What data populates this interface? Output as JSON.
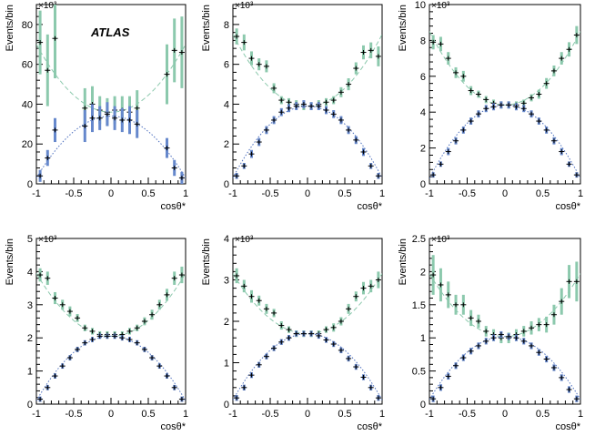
{
  "figure": {
    "atlas_label": "ATLAS"
  },
  "colors": {
    "green_series": "#8cc9ad",
    "blue_series": "#6688cc",
    "green_curve": "#8cc9ad",
    "blue_curve": "#4d6fbf",
    "marker": "#000000",
    "frame": "#000000"
  },
  "chart_data": [
    {
      "type": "scatter",
      "panel": "top-left",
      "xlabel": "cosθ*",
      "ylabel": "Events/bin",
      "exponent_label": "×10³",
      "xlim": [
        -1,
        1
      ],
      "ylim": [
        0,
        90
      ],
      "xticks": [
        -1,
        -0.5,
        0,
        0.5,
        1
      ],
      "xtick_labels": [
        "-1",
        "-0.5",
        "0",
        "0.5",
        "1"
      ],
      "yticks": [
        0,
        20,
        40,
        60,
        80
      ],
      "ytick_labels": [
        "0",
        "20",
        "40",
        "60",
        "80"
      ],
      "show_atlas": true,
      "x": [
        -0.95,
        -0.85,
        -0.75,
        -0.65,
        -0.55,
        -0.45,
        -0.35,
        -0.25,
        -0.15,
        -0.05,
        0.05,
        0.15,
        0.25,
        0.35,
        0.45,
        0.55,
        0.65,
        0.75,
        0.85,
        0.95
      ],
      "series": [
        {
          "name": "green",
          "style": "dashed",
          "curve": [
            36,
            0,
            34
          ],
          "values": [
            71,
            57,
            73,
            null,
            null,
            null,
            38,
            40,
            37,
            36,
            37,
            37,
            36,
            38,
            null,
            null,
            null,
            55,
            67,
            66
          ],
          "errors": [
            16,
            18,
            20,
            0,
            0,
            0,
            10,
            9,
            7,
            7,
            7,
            7,
            8,
            9,
            0,
            0,
            0,
            15,
            16,
            18
          ]
        },
        {
          "name": "blue",
          "style": "dotted",
          "curve": [
            34,
            0,
            -31
          ],
          "values": [
            4,
            13,
            27,
            null,
            null,
            null,
            29,
            33,
            33,
            35,
            33,
            32,
            32,
            30,
            null,
            null,
            null,
            18,
            8,
            3
          ],
          "errors": [
            3,
            4,
            6,
            0,
            0,
            0,
            8,
            7,
            6,
            6,
            6,
            6,
            7,
            7,
            0,
            0,
            0,
            5,
            4,
            3
          ]
        }
      ]
    },
    {
      "type": "scatter",
      "panel": "top-middle",
      "xlabel": "cosθ*",
      "ylabel": "Events/bin",
      "exponent_label": "×10³",
      "xlim": [
        -1,
        1
      ],
      "ylim": [
        0,
        9
      ],
      "xticks": [
        -1,
        -0.5,
        0,
        0.5,
        1
      ],
      "xtick_labels": [
        "-1",
        "-0.5",
        "0",
        "0.5",
        "1"
      ],
      "yticks": [
        0,
        2,
        4,
        6,
        8
      ],
      "ytick_labels": [
        "0",
        "2",
        "4",
        "6",
        "8"
      ],
      "show_atlas": false,
      "x": [
        -0.95,
        -0.85,
        -0.75,
        -0.65,
        -0.55,
        -0.45,
        -0.35,
        -0.25,
        -0.15,
        -0.05,
        0.05,
        0.15,
        0.25,
        0.35,
        0.45,
        0.55,
        0.65,
        0.75,
        0.85,
        0.95
      ],
      "series": [
        {
          "name": "green",
          "style": "dashed",
          "curve": [
            3.9,
            0,
            3.6
          ],
          "values": [
            7.4,
            7.1,
            6.3,
            6.0,
            5.9,
            4.8,
            4.2,
            4.1,
            4.0,
            3.9,
            3.9,
            4.0,
            4.1,
            4.2,
            4.6,
            5.0,
            5.8,
            6.6,
            6.7,
            6.4
          ],
          "errors": [
            0.4,
            0.4,
            0.35,
            0.3,
            0.3,
            0.25,
            0.2,
            0.2,
            0.2,
            0.2,
            0.2,
            0.2,
            0.2,
            0.2,
            0.25,
            0.3,
            0.3,
            0.35,
            0.4,
            0.5
          ]
        },
        {
          "name": "blue",
          "style": "dotted",
          "curve": [
            3.9,
            0,
            -3.6
          ],
          "values": [
            0.4,
            0.9,
            1.5,
            2.1,
            2.7,
            3.2,
            3.6,
            3.8,
            3.9,
            4.0,
            3.9,
            3.9,
            3.7,
            3.5,
            3.2,
            2.7,
            2.2,
            1.6,
            0.9,
            0.4
          ],
          "errors": [
            0.15,
            0.15,
            0.2,
            0.2,
            0.2,
            0.2,
            0.2,
            0.2,
            0.2,
            0.2,
            0.2,
            0.2,
            0.2,
            0.2,
            0.2,
            0.2,
            0.2,
            0.2,
            0.15,
            0.15
          ]
        }
      ]
    },
    {
      "type": "scatter",
      "panel": "top-right",
      "xlabel": "cosθ*",
      "ylabel": "Events/bin",
      "exponent_label": "×10³",
      "xlim": [
        -1,
        1
      ],
      "ylim": [
        0,
        10
      ],
      "xticks": [
        -1,
        -0.5,
        0,
        0.5,
        1
      ],
      "xtick_labels": [
        "-1",
        "-0.5",
        "0",
        "0.5",
        "1"
      ],
      "yticks": [
        0,
        2,
        4,
        6,
        8,
        10
      ],
      "ytick_labels": [
        "0",
        "2",
        "4",
        "6",
        "8",
        "10"
      ],
      "show_atlas": false,
      "x": [
        -0.95,
        -0.85,
        -0.75,
        -0.65,
        -0.55,
        -0.45,
        -0.35,
        -0.25,
        -0.15,
        -0.05,
        0.05,
        0.15,
        0.25,
        0.35,
        0.45,
        0.55,
        0.65,
        0.75,
        0.85,
        0.95
      ],
      "series": [
        {
          "name": "green",
          "style": "dashed",
          "curve": [
            4.4,
            0,
            4.1
          ],
          "values": [
            7.9,
            7.8,
            7.0,
            6.2,
            6.0,
            5.2,
            5.0,
            4.7,
            4.5,
            4.4,
            4.4,
            4.4,
            4.5,
            4.8,
            5.0,
            5.6,
            6.3,
            7.0,
            7.5,
            8.3
          ],
          "errors": [
            0.4,
            0.4,
            0.35,
            0.3,
            0.3,
            0.25,
            0.2,
            0.2,
            0.2,
            0.2,
            0.2,
            0.2,
            0.2,
            0.2,
            0.25,
            0.3,
            0.3,
            0.35,
            0.4,
            0.5
          ]
        },
        {
          "name": "blue",
          "style": "dotted",
          "curve": [
            4.4,
            0,
            -4.1
          ],
          "values": [
            0.5,
            1.1,
            1.8,
            2.4,
            3.0,
            3.5,
            3.9,
            4.2,
            4.3,
            4.4,
            4.4,
            4.3,
            4.2,
            3.9,
            3.5,
            3.0,
            2.4,
            1.8,
            1.1,
            0.5
          ],
          "errors": [
            0.15,
            0.15,
            0.2,
            0.2,
            0.2,
            0.2,
            0.2,
            0.2,
            0.2,
            0.2,
            0.2,
            0.2,
            0.2,
            0.2,
            0.2,
            0.2,
            0.2,
            0.2,
            0.15,
            0.15
          ]
        }
      ]
    },
    {
      "type": "scatter",
      "panel": "bottom-left",
      "xlabel": "cosθ*",
      "ylabel": "Events/bin",
      "exponent_label": "×10³",
      "xlim": [
        -1,
        1
      ],
      "ylim": [
        0,
        5
      ],
      "xticks": [
        -1,
        -0.5,
        0,
        0.5,
        1
      ],
      "xtick_labels": [
        "-1",
        "-0.5",
        "0",
        "0.5",
        "1"
      ],
      "yticks": [
        0,
        1,
        2,
        3,
        4,
        5
      ],
      "ytick_labels": [
        "0",
        "1",
        "2",
        "3",
        "4",
        "5"
      ],
      "show_atlas": false,
      "x": [
        -0.95,
        -0.85,
        -0.75,
        -0.65,
        -0.55,
        -0.45,
        -0.35,
        -0.25,
        -0.15,
        -0.05,
        0.05,
        0.15,
        0.25,
        0.35,
        0.45,
        0.55,
        0.65,
        0.75,
        0.85,
        0.95
      ],
      "series": [
        {
          "name": "green",
          "style": "dashed",
          "curve": [
            2.05,
            0,
            1.9
          ],
          "values": [
            3.9,
            3.8,
            3.2,
            3.0,
            2.8,
            2.6,
            2.3,
            2.2,
            2.1,
            2.1,
            2.1,
            2.1,
            2.2,
            2.3,
            2.5,
            2.7,
            3.0,
            3.3,
            3.8,
            3.9
          ],
          "errors": [
            0.2,
            0.2,
            0.18,
            0.15,
            0.15,
            0.12,
            0.1,
            0.1,
            0.1,
            0.1,
            0.1,
            0.1,
            0.1,
            0.1,
            0.12,
            0.15,
            0.15,
            0.18,
            0.2,
            0.25
          ]
        },
        {
          "name": "blue",
          "style": "dotted",
          "curve": [
            2.05,
            0,
            -1.95
          ],
          "values": [
            0.15,
            0.5,
            0.85,
            1.15,
            1.4,
            1.65,
            1.85,
            1.95,
            2.05,
            2.05,
            2.05,
            2.0,
            1.95,
            1.85,
            1.65,
            1.4,
            1.15,
            0.85,
            0.5,
            0.15
          ],
          "errors": [
            0.08,
            0.08,
            0.08,
            0.08,
            0.08,
            0.08,
            0.08,
            0.08,
            0.08,
            0.08,
            0.08,
            0.08,
            0.08,
            0.08,
            0.08,
            0.08,
            0.08,
            0.08,
            0.08,
            0.08
          ]
        }
      ]
    },
    {
      "type": "scatter",
      "panel": "bottom-middle",
      "xlabel": "cosθ*",
      "ylabel": "Events/bin",
      "exponent_label": "×10³",
      "xlim": [
        -1,
        1
      ],
      "ylim": [
        0,
        4
      ],
      "xticks": [
        -1,
        -0.5,
        0,
        0.5,
        1
      ],
      "xtick_labels": [
        "-1",
        "-0.5",
        "0",
        "0.5",
        "1"
      ],
      "yticks": [
        0,
        1,
        2,
        3,
        4
      ],
      "ytick_labels": [
        "0",
        "1",
        "2",
        "3",
        "4"
      ],
      "show_atlas": false,
      "x": [
        -0.95,
        -0.85,
        -0.75,
        -0.65,
        -0.55,
        -0.45,
        -0.35,
        -0.25,
        -0.15,
        -0.05,
        0.05,
        0.15,
        0.25,
        0.35,
        0.45,
        0.55,
        0.65,
        0.75,
        0.85,
        0.95
      ],
      "series": [
        {
          "name": "green",
          "style": "dashed",
          "curve": [
            1.7,
            0,
            1.45
          ],
          "values": [
            3.1,
            2.85,
            2.6,
            2.5,
            2.3,
            2.2,
            1.9,
            1.8,
            1.7,
            1.7,
            1.7,
            1.7,
            1.8,
            1.85,
            2.0,
            2.3,
            2.6,
            2.8,
            2.85,
            3.0
          ],
          "errors": [
            0.18,
            0.15,
            0.15,
            0.12,
            0.12,
            0.1,
            0.1,
            0.08,
            0.08,
            0.08,
            0.08,
            0.08,
            0.08,
            0.1,
            0.1,
            0.12,
            0.12,
            0.15,
            0.15,
            0.2
          ]
        },
        {
          "name": "blue",
          "style": "dotted",
          "curve": [
            1.7,
            0,
            -1.6
          ],
          "values": [
            0.15,
            0.4,
            0.7,
            0.95,
            1.15,
            1.35,
            1.5,
            1.6,
            1.7,
            1.7,
            1.7,
            1.65,
            1.55,
            1.45,
            1.3,
            1.1,
            0.9,
            0.65,
            0.4,
            0.15
          ],
          "errors": [
            0.07,
            0.07,
            0.07,
            0.07,
            0.07,
            0.07,
            0.07,
            0.07,
            0.07,
            0.07,
            0.07,
            0.07,
            0.07,
            0.07,
            0.07,
            0.07,
            0.07,
            0.07,
            0.07,
            0.07
          ]
        }
      ]
    },
    {
      "type": "scatter",
      "panel": "bottom-right",
      "xlabel": "cosθ*",
      "ylabel": "Events/bin",
      "exponent_label": "×10³",
      "xlim": [
        -1,
        1
      ],
      "ylim": [
        0,
        2.5
      ],
      "xticks": [
        -1,
        -0.5,
        0,
        0.5,
        1
      ],
      "xtick_labels": [
        "-1",
        "-0.5",
        "0",
        "0.5",
        "1"
      ],
      "yticks": [
        0,
        0.5,
        1,
        1.5,
        2,
        2.5
      ],
      "ytick_labels": [
        "0",
        "0.5",
        "1",
        "1.5",
        "2",
        "2.5"
      ],
      "show_atlas": false,
      "x": [
        -0.95,
        -0.85,
        -0.75,
        -0.65,
        -0.55,
        -0.45,
        -0.35,
        -0.25,
        -0.15,
        -0.05,
        0.05,
        0.15,
        0.25,
        0.35,
        0.45,
        0.55,
        0.65,
        0.75,
        0.85,
        0.95
      ],
      "series": [
        {
          "name": "green",
          "style": "dashed",
          "curve": [
            1.02,
            0,
            0.95
          ],
          "values": [
            1.95,
            1.8,
            1.65,
            1.5,
            1.5,
            1.3,
            1.25,
            1.1,
            1.05,
            1.0,
            1.0,
            1.05,
            1.1,
            1.15,
            1.2,
            1.2,
            1.35,
            1.55,
            1.85,
            1.85
          ],
          "errors": [
            0.3,
            0.25,
            0.2,
            0.15,
            0.15,
            0.12,
            0.1,
            0.08,
            0.08,
            0.08,
            0.08,
            0.08,
            0.08,
            0.1,
            0.1,
            0.12,
            0.15,
            0.2,
            0.25,
            0.3
          ]
        },
        {
          "name": "blue",
          "style": "dotted",
          "curve": [
            1.02,
            0,
            -0.95
          ],
          "values": [
            0.08,
            0.25,
            0.42,
            0.58,
            0.7,
            0.8,
            0.88,
            0.95,
            1.0,
            1.05,
            1.02,
            1.0,
            0.95,
            0.88,
            0.78,
            0.68,
            0.55,
            0.4,
            0.22,
            0.08
          ],
          "errors": [
            0.05,
            0.05,
            0.05,
            0.05,
            0.05,
            0.05,
            0.05,
            0.05,
            0.05,
            0.05,
            0.05,
            0.05,
            0.05,
            0.05,
            0.05,
            0.05,
            0.05,
            0.05,
            0.05,
            0.05
          ]
        }
      ]
    }
  ]
}
